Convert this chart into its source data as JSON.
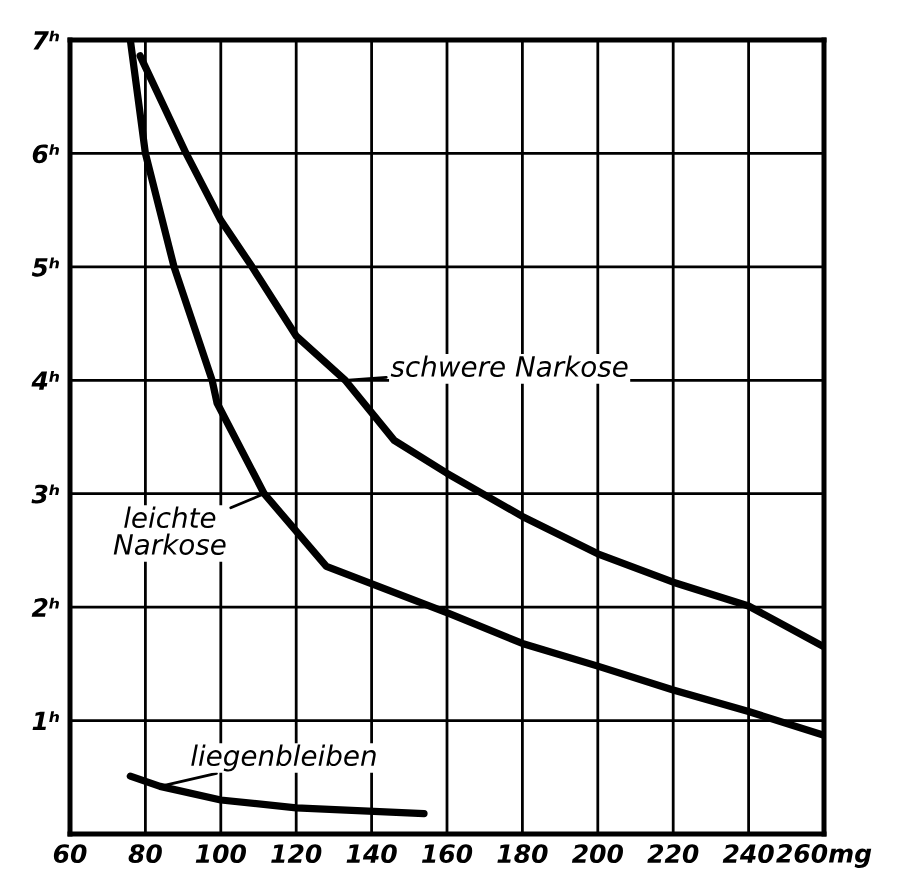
{
  "chart_data": {
    "type": "line",
    "xlim": [
      60,
      260
    ],
    "ylim": [
      0,
      7
    ],
    "xticks": [
      60,
      80,
      100,
      120,
      140,
      160,
      180,
      200,
      220,
      240,
      {
        "value": 260,
        "label": "260mg"
      }
    ],
    "yticks": [
      {
        "value": 0,
        "label": null
      },
      {
        "value": 1,
        "label": "1ʰ"
      },
      {
        "value": 2,
        "label": "2ʰ"
      },
      {
        "value": 3,
        "label": "3ʰ"
      },
      {
        "value": 4,
        "label": "4ʰ"
      },
      {
        "value": 5,
        "label": "5ʰ"
      },
      {
        "value": 6,
        "label": "6ʰ"
      },
      {
        "value": 7,
        "label": "7ʰ"
      }
    ],
    "grid": true,
    "marker": "none",
    "line_style": "solid",
    "series": [
      {
        "name": "schwere Narkose",
        "color": "#000000",
        "x": [
          78.6,
          90.8,
          100,
          108.3,
          120,
          133,
          146,
          160,
          180,
          200,
          220,
          240,
          260
        ],
        "values": [
          6.86,
          6.0,
          5.41,
          5.0,
          4.39,
          4.0,
          3.47,
          3.18,
          2.8,
          2.47,
          2.22,
          2.01,
          1.65
        ]
      },
      {
        "name": "leichte Narkose",
        "color": "#000000",
        "x": [
          76,
          80,
          87.6,
          97.7,
          99,
          111.5,
          128,
          160.8,
          180,
          200,
          220,
          240,
          260
        ],
        "values": [
          7.0,
          6.0,
          5.0,
          4.0,
          3.8,
          3.0,
          2.36,
          1.94,
          1.68,
          1.48,
          1.27,
          1.08,
          0.87
        ]
      },
      {
        "name": "liegenbleiben",
        "color": "#000000",
        "x": [
          76,
          83.9,
          100,
          120,
          153.9
        ],
        "values": [
          0.51,
          0.42,
          0.3,
          0.23,
          0.18
        ]
      }
    ]
  }
}
